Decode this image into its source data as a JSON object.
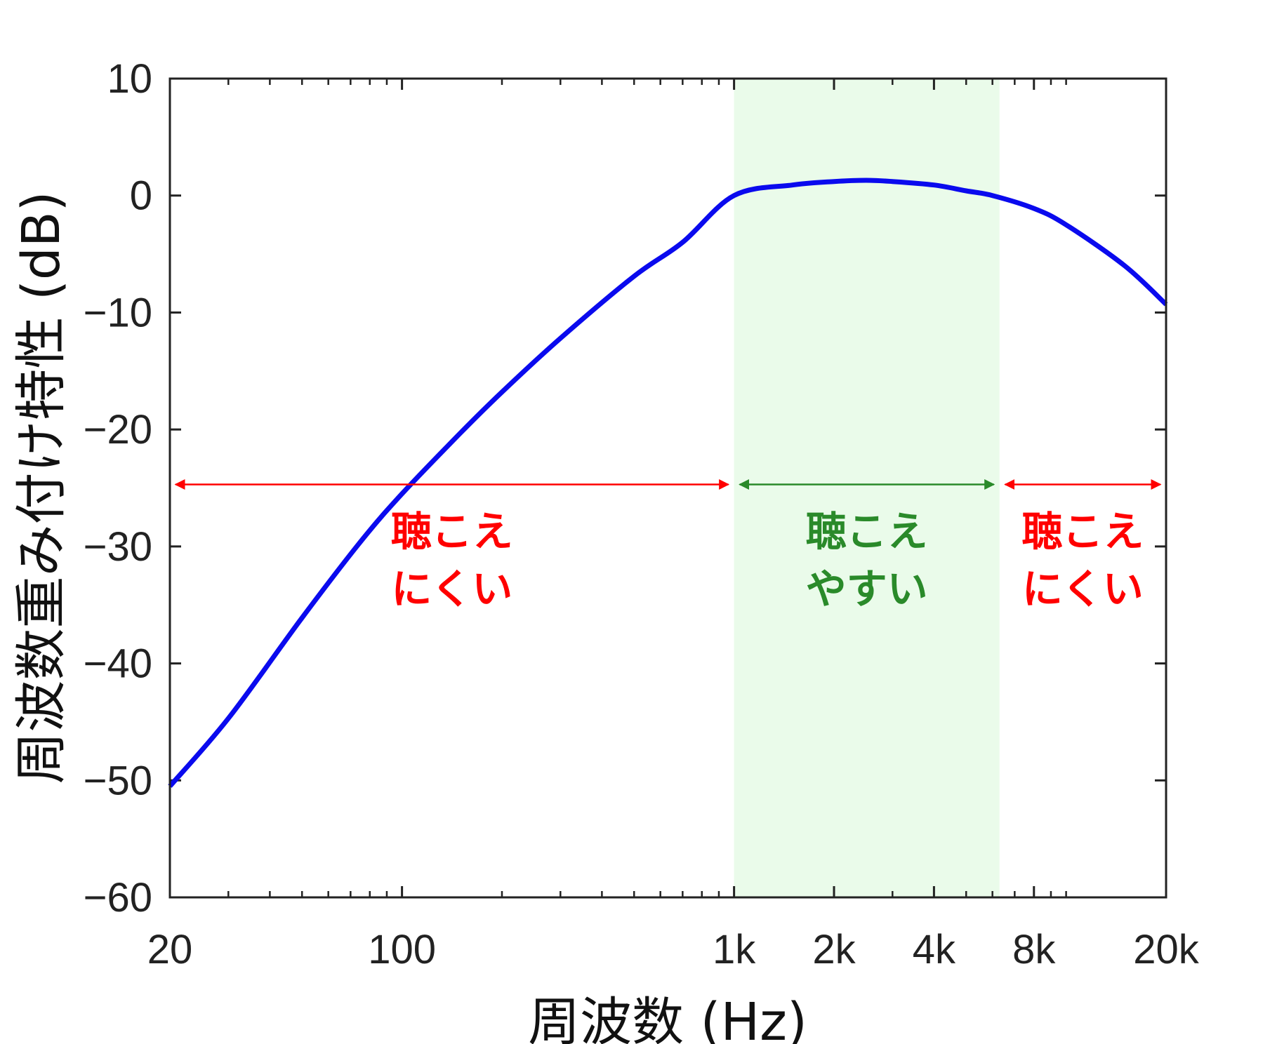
{
  "chart_data": {
    "type": "line",
    "title": "",
    "xlabel": "周波数 (Hz)",
    "ylabel": "周波数重み付け特性 (dB)",
    "xscale": "log",
    "xlim": [
      20,
      20000
    ],
    "ylim": [
      -60,
      10
    ],
    "grid": false,
    "legend": "none",
    "x_ticks": [
      {
        "value": 20,
        "label": "20"
      },
      {
        "value": 100,
        "label": "100"
      },
      {
        "value": 1000,
        "label": "1k"
      },
      {
        "value": 2000,
        "label": "2k"
      },
      {
        "value": 4000,
        "label": "4k"
      },
      {
        "value": 8000,
        "label": "8k"
      },
      {
        "value": 20000,
        "label": "20k"
      }
    ],
    "x_minor_ticks": [
      30,
      40,
      50,
      60,
      70,
      80,
      90,
      200,
      300,
      400,
      500,
      600,
      700,
      800,
      900,
      3000,
      5000,
      6000,
      7000,
      9000,
      10000
    ],
    "y_ticks": [
      {
        "value": 10,
        "label": "10"
      },
      {
        "value": 0,
        "label": "0"
      },
      {
        "value": -10,
        "label": "−10"
      },
      {
        "value": -20,
        "label": "−20"
      },
      {
        "value": -30,
        "label": "−30"
      },
      {
        "value": -40,
        "label": "−40"
      },
      {
        "value": -50,
        "label": "−50"
      },
      {
        "value": -60,
        "label": "−60"
      }
    ],
    "series": [
      {
        "color": "#0a0aee",
        "x": [
          20,
          30,
          50,
          75,
          100,
          150,
          200,
          300,
          500,
          700,
          1000,
          1500,
          2000,
          2500,
          3000,
          4000,
          5000,
          6000,
          8000,
          10000,
          15000,
          20000
        ],
        "y": [
          -50.5,
          -44.7,
          -36.1,
          -29.6,
          -25.5,
          -20.3,
          -16.8,
          -12.2,
          -6.9,
          -4.0,
          0.0,
          0.9,
          1.2,
          1.3,
          1.2,
          0.9,
          0.4,
          0.0,
          -1.1,
          -2.5,
          -6.0,
          -9.3
        ]
      }
    ],
    "shaded_band": {
      "x_from": 1000,
      "x_to": 6300,
      "color": "#eafbea"
    },
    "annotations": [
      {
        "x_from": 20,
        "x_to": 1000,
        "y": -24.7,
        "color": "#ff0000",
        "lines": [
          "聴こえ",
          "にくい"
        ]
      },
      {
        "x_from": 1000,
        "x_to": 6300,
        "y": -24.7,
        "color": "#2a8a2a",
        "lines": [
          "聴こえ",
          "やすい"
        ]
      },
      {
        "x_from": 6300,
        "x_to": 20000,
        "y": -24.7,
        "color": "#ff0000",
        "lines": [
          "聴こえ",
          "にくい"
        ]
      }
    ]
  }
}
